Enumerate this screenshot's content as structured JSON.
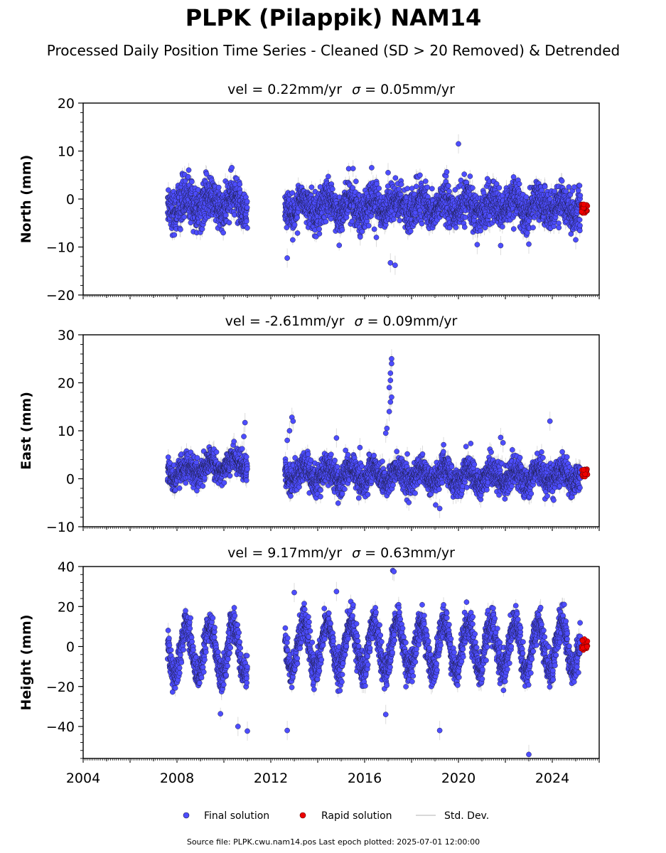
{
  "chart_data": {
    "type": "scatter",
    "title": "PLPK (Pilappik) NAM14",
    "subtitle": "Processed Daily Position Time Series - Cleaned (SD > 20 Removed) & Detrended",
    "xlim": [
      2004,
      2026
    ],
    "x_ticks": [
      "2004",
      "2008",
      "2012",
      "2016",
      "2020",
      "2024"
    ],
    "panels": [
      {
        "name": "north",
        "vel_label": "vel = 0.22mm/yr",
        "sigma_label": "= 0.05mm/yr",
        "ylabel": "North (mm)",
        "ylim": [
          -20,
          20
        ],
        "y_ticks": [
          "20",
          "10",
          "0",
          "−10",
          "−20"
        ],
        "segments": [
          {
            "start": 2007.6,
            "end": 2011.0,
            "amp": 1.5,
            "noise": 2.2,
            "mean": -1.0
          },
          {
            "start": 2012.6,
            "end": 2025.2,
            "amp": 1.5,
            "noise": 2.0,
            "mean": -1.5
          }
        ],
        "outliers": [
          [
            2012.7,
            -12.3
          ],
          [
            2017.1,
            -13.3
          ],
          [
            2017.3,
            -13.8
          ],
          [
            2020.0,
            11.5
          ],
          [
            2017.0,
            5.5
          ],
          [
            2021.8,
            -9.7
          ],
          [
            2023.0,
            -9.4
          ],
          [
            2025.0,
            -8.5
          ],
          [
            2016.5,
            -8.0
          ],
          [
            2020.8,
            -9.5
          ]
        ],
        "rapid": {
          "start": 2025.25,
          "end": 2025.5,
          "center": -2.0,
          "spread": 0.9
        }
      },
      {
        "name": "east",
        "vel_label": "vel = -2.61mm/yr",
        "sigma_label": "= 0.09mm/yr",
        "ylabel": "East (mm)",
        "ylim": [
          -10,
          30
        ],
        "y_ticks": [
          "30",
          "20",
          "10",
          "0",
          "−10"
        ],
        "segments": [
          {
            "start": 2007.6,
            "end": 2011.0,
            "amp": 1.3,
            "noise": 1.3,
            "mean": 1.0,
            "trend": 0.8
          },
          {
            "start": 2012.6,
            "end": 2025.2,
            "amp": 1.5,
            "noise": 1.5,
            "mean": 1.0,
            "trend": -0.05
          }
        ],
        "outliers": [
          [
            2017.15,
            25.0
          ],
          [
            2017.15,
            24.0
          ],
          [
            2017.1,
            22.0
          ],
          [
            2017.1,
            20.5
          ],
          [
            2017.05,
            19.0
          ],
          [
            2017.15,
            17.0
          ],
          [
            2017.1,
            16.0
          ],
          [
            2017.05,
            14.0
          ],
          [
            2016.95,
            10.5
          ],
          [
            2016.9,
            9.5
          ],
          [
            2012.9,
            12.8
          ],
          [
            2012.95,
            12.0
          ],
          [
            2012.8,
            10.0
          ],
          [
            2012.7,
            8.0
          ],
          [
            2010.9,
            11.7
          ],
          [
            2010.85,
            8.8
          ],
          [
            2023.9,
            12.0
          ],
          [
            2023.1,
            -3.1
          ],
          [
            2019.2,
            -6.2
          ],
          [
            2021.8,
            8.6
          ],
          [
            2021.9,
            7.5
          ],
          [
            2015.8,
            6.5
          ],
          [
            2014.8,
            8.5
          ]
        ],
        "rapid": {
          "start": 2025.25,
          "end": 2025.5,
          "center": 1.2,
          "spread": 0.8
        }
      },
      {
        "name": "height",
        "vel_label": "vel = 9.17mm/yr",
        "sigma_label": "= 0.63mm/yr",
        "ylabel": "Height (mm)",
        "ylim": [
          -56,
          40
        ],
        "y_ticks": [
          "40",
          "20",
          "0",
          "−20",
          "−40"
        ],
        "segments": [
          {
            "start": 2007.6,
            "end": 2011.0,
            "amp": 13.0,
            "noise": 4.0,
            "mean": -2.0
          },
          {
            "start": 2012.6,
            "end": 2025.2,
            "amp": 12.0,
            "noise": 4.0,
            "mean": 0.0
          }
        ],
        "outliers": [
          [
            2011.0,
            -42.3
          ],
          [
            2012.7,
            -42.0
          ],
          [
            2017.2,
            38.0
          ],
          [
            2017.25,
            37.5
          ],
          [
            2023.0,
            -54.0
          ],
          [
            2019.2,
            -42.0
          ],
          [
            2013.0,
            27.0
          ],
          [
            2014.8,
            27.5
          ],
          [
            2010.6,
            -40.0
          ],
          [
            2016.9,
            -34.0
          ]
        ],
        "rapid": {
          "start": 2025.25,
          "end": 2025.5,
          "center": 1.0,
          "spread": 2.8
        }
      }
    ],
    "legend": [
      "Final solution",
      "Rapid solution",
      "Std. Dev."
    ],
    "colors": {
      "final": "#4d4dff",
      "final_edge": "#1a1a3a",
      "rapid": "#ee0000",
      "rapid_edge": "#550000",
      "std": "#9a9a9a"
    }
  },
  "footer": "Source file: PLPK.cwu.nam14.pos  Last epoch plotted: 2025-07-01 12:00:00"
}
